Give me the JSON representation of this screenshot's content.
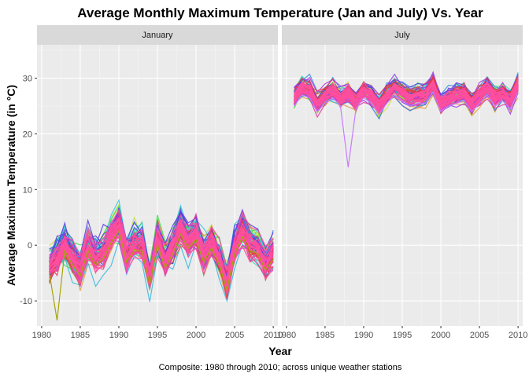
{
  "chart_data": {
    "type": "line",
    "title": "Average Monthly Maximum Temperature (Jan and July) Vs. Year",
    "xlabel": "Year",
    "ylabel": "Average Maximum Temperature (in °C)",
    "caption": "Composite: 1980 through 2010; across unique weather stations",
    "xlim": [
      1980,
      2010
    ],
    "ylim": [
      -14.5,
      36
    ],
    "x_ticks": [
      1980,
      1985,
      1990,
      1995,
      2000,
      2005,
      2010
    ],
    "y_ticks": [
      -10,
      0,
      10,
      20,
      30
    ],
    "grid": true,
    "legend": "none",
    "panels": [
      {
        "name": "January",
        "x": [
          1981,
          1982,
          1983,
          1984,
          1985,
          1986,
          1987,
          1988,
          1989,
          1990,
          1991,
          1992,
          1993,
          1994,
          1995,
          1996,
          1997,
          1998,
          1999,
          2000,
          2001,
          2002,
          2003,
          2004,
          2005,
          2006,
          2007,
          2008,
          2009,
          2010
        ],
        "typical_mean": [
          -3.5,
          -2.0,
          0.5,
          -2.0,
          -4.0,
          0.5,
          -2.0,
          -1.0,
          2.0,
          4.0,
          -1.5,
          0.5,
          0.5,
          -5.5,
          1.5,
          -2.5,
          0.0,
          3.5,
          1.0,
          2.5,
          -1.5,
          1.0,
          -2.0,
          -6.5,
          0.0,
          3.0,
          0.5,
          0.0,
          -3.0,
          -1.0
        ],
        "range_min": -13.5,
        "range_max": 10.5
      },
      {
        "name": "July",
        "x": [
          1981,
          1982,
          1983,
          1984,
          1985,
          1986,
          1987,
          1988,
          1989,
          1990,
          1991,
          1992,
          1993,
          1994,
          1995,
          1996,
          1997,
          1998,
          1999,
          2000,
          2001,
          2002,
          2003,
          2004,
          2005,
          2006,
          2007,
          2008,
          2009,
          2010
        ],
        "typical_mean": [
          26.5,
          28.5,
          28.0,
          25.5,
          27.0,
          28.0,
          26.5,
          27.5,
          26.0,
          28.0,
          27.0,
          25.0,
          27.0,
          28.5,
          27.5,
          26.5,
          27.0,
          27.0,
          29.0,
          25.5,
          26.5,
          27.0,
          27.5,
          25.5,
          27.0,
          28.5,
          26.5,
          27.5,
          26.0,
          29.0
        ],
        "range_min": 14.0,
        "range_max": 34.0
      }
    ]
  }
}
